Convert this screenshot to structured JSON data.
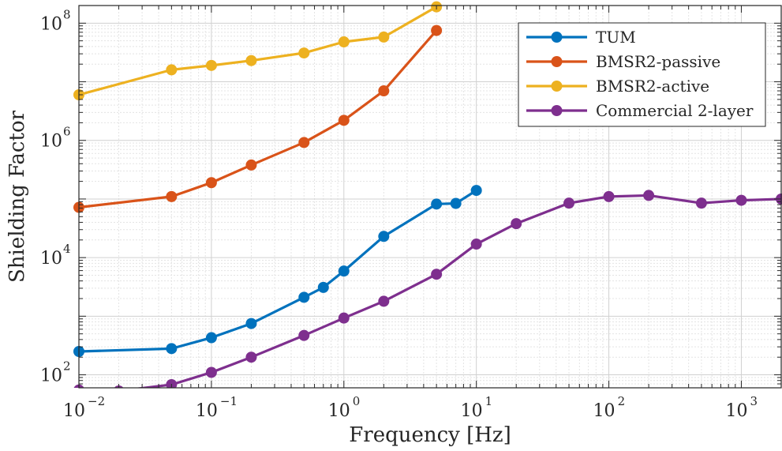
{
  "chart_data": {
    "type": "line",
    "title": "",
    "xlabel": "Frequency [Hz]",
    "ylabel": "Shielding Factor",
    "xscale": "log",
    "yscale": "log",
    "xlim": [
      0.01,
      2000
    ],
    "ylim": [
      60,
      200000000
    ],
    "grid": true,
    "minor_grid": true,
    "legend": "top-right",
    "x_ticks": [
      {
        "value": 0.01,
        "base": "10",
        "exp": "−2"
      },
      {
        "value": 0.1,
        "base": "10",
        "exp": "−1"
      },
      {
        "value": 1,
        "base": "10",
        "exp": "0"
      },
      {
        "value": 10,
        "base": "10",
        "exp": "1"
      },
      {
        "value": 100,
        "base": "10",
        "exp": "2"
      },
      {
        "value": 1000,
        "base": "10",
        "exp": "3"
      }
    ],
    "y_ticks": [
      {
        "value": 100,
        "base": "10",
        "exp": "2"
      },
      {
        "value": 10000,
        "base": "10",
        "exp": "4"
      },
      {
        "value": 1000000,
        "base": "10",
        "exp": "6"
      },
      {
        "value": 100000000,
        "base": "10",
        "exp": "8"
      }
    ],
    "series": [
      {
        "name": "TUM",
        "color": "#0072BD",
        "x": [
          0.01,
          0.05,
          0.1,
          0.2,
          0.5,
          0.7,
          1,
          2,
          5,
          7,
          10
        ],
        "y": [
          250,
          280,
          430,
          750,
          2100,
          3100,
          5900,
          23000,
          82000,
          84000,
          140000
        ]
      },
      {
        "name": "BMSR2-passive",
        "color": "#D95319",
        "x": [
          0.01,
          0.05,
          0.1,
          0.2,
          0.5,
          1,
          2,
          5
        ],
        "y": [
          72000,
          110000,
          190000,
          380000,
          920000,
          2200000,
          7000000,
          75000000
        ]
      },
      {
        "name": "BMSR2-active",
        "color": "#EDB120",
        "x": [
          0.01,
          0.05,
          0.1,
          0.2,
          0.5,
          1,
          2,
          5
        ],
        "y": [
          6000000,
          16000000,
          19000000,
          23000000,
          31000000,
          48000000,
          58000000,
          190000000
        ]
      },
      {
        "name": "Commercial 2-layer",
        "color": "#7E2F8E",
        "x": [
          0.01,
          0.02,
          0.05,
          0.1,
          0.2,
          0.5,
          1,
          2,
          5,
          10,
          20,
          50,
          100,
          200,
          500,
          1000,
          2000
        ],
        "y": [
          55,
          53,
          68,
          110,
          200,
          470,
          930,
          1800,
          5200,
          17000,
          38000,
          85000,
          110000,
          115000,
          85000,
          95000,
          100000
        ]
      }
    ]
  }
}
